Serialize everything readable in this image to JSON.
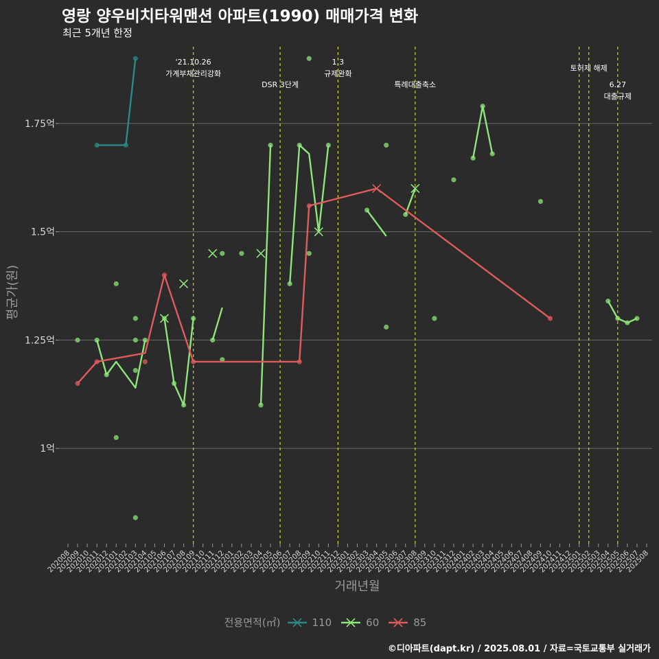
{
  "header": {
    "title": "영랑 양우비치타워맨션 아파트(1990) 매매가격 변화",
    "subtitle": "최근 5개년 한정"
  },
  "footer": {
    "credit": "©디아파트(dapt.kr) / 2025.08.01 / 자료=국토교통부 실거래가"
  },
  "legend": {
    "title": "전용면적(㎡)",
    "items": [
      {
        "label": "110",
        "color": "#2a8a8a"
      },
      {
        "label": "60",
        "color": "#8ee57a"
      },
      {
        "label": "85",
        "color": "#e05c5c"
      }
    ]
  },
  "chart_data": {
    "type": "line",
    "xlabel": "거래년월",
    "ylabel": "평균가(원)",
    "ylim": [
      0.78,
      1.94
    ],
    "yticks": [
      {
        "value": 1.0,
        "label": "1억"
      },
      {
        "value": 1.25,
        "label": "1.25억"
      },
      {
        "value": 1.5,
        "label": "1.5억"
      },
      {
        "value": 1.75,
        "label": "1.75억"
      }
    ],
    "categories": [
      "202008",
      "202009",
      "202010",
      "202011",
      "202012",
      "202101",
      "202102",
      "202103",
      "202104",
      "202105",
      "202106",
      "202107",
      "202108",
      "202109",
      "202110",
      "202111",
      "202112",
      "202201",
      "202202",
      "202203",
      "202204",
      "202205",
      "202206",
      "202207",
      "202208",
      "202209",
      "202210",
      "202211",
      "202212",
      "202301",
      "202302",
      "202303",
      "202304",
      "202305",
      "202306",
      "202307",
      "202308",
      "202309",
      "202310",
      "202311",
      "202312",
      "202401",
      "202402",
      "202403",
      "202404",
      "202405",
      "202406",
      "202407",
      "202408",
      "202409",
      "202410",
      "202411",
      "202412",
      "202501",
      "202502",
      "202503",
      "202504",
      "202505",
      "202506",
      "202507",
      "202508"
    ],
    "x_positions": [
      0,
      1,
      2,
      3,
      4,
      5,
      6,
      7,
      8,
      9,
      10,
      11,
      12,
      13,
      14,
      15,
      16,
      17,
      18,
      19,
      20,
      21,
      22,
      23,
      24,
      25,
      26,
      27,
      28,
      29,
      30,
      31,
      32,
      33,
      34,
      35,
      36,
      37,
      38,
      39,
      40,
      41,
      42,
      43,
      44,
      45,
      46,
      47,
      48,
      49,
      50,
      51,
      52,
      53,
      54,
      55,
      56,
      57,
      58,
      59,
      60
    ],
    "grid": true,
    "legend_position": "bottom",
    "events": [
      {
        "x": 13,
        "label": [
          "'21.10.26",
          "가계부채관리강화"
        ],
        "level": "high"
      },
      {
        "x": 22,
        "label": [
          "DSR 3단계"
        ],
        "level": "low"
      },
      {
        "x": 28,
        "label": [
          "1.3",
          "규제완화"
        ],
        "level": "high"
      },
      {
        "x": 36,
        "label": [
          "특례대출축소"
        ],
        "level": "low"
      },
      {
        "x": 53,
        "label": [],
        "level": "none"
      },
      {
        "x": 54,
        "label": [
          "토허제 해제"
        ],
        "level": "mid"
      },
      {
        "x": 57,
        "label": [
          "6.27",
          "대출규제"
        ],
        "level": "low"
      }
    ],
    "series": [
      {
        "name": "110",
        "color": "#2a8a8a",
        "lines": [
          [
            [
              3,
              1.7
            ],
            [
              6,
              1.7
            ],
            [
              7,
              1.9
            ]
          ]
        ],
        "points": [
          [
            3,
            1.7
          ],
          [
            6,
            1.7
          ],
          [
            7,
            1.9
          ]
        ],
        "cross": []
      },
      {
        "name": "60",
        "color": "#8ee57a",
        "lines": [
          [
            [
              3,
              1.25
            ],
            [
              4,
              1.17
            ],
            [
              5,
              1.2
            ],
            [
              7,
              1.14
            ],
            [
              8,
              1.25
            ]
          ],
          [
            [
              10,
              1.3
            ],
            [
              11,
              1.15
            ],
            [
              12,
              1.1
            ],
            [
              13,
              1.3
            ]
          ],
          [
            [
              15,
              1.25
            ],
            [
              16,
              1.325
            ]
          ],
          [
            [
              20,
              1.1
            ],
            [
              21,
              1.7
            ]
          ],
          [
            [
              23,
              1.38
            ],
            [
              24,
              1.7
            ],
            [
              25,
              1.68
            ],
            [
              26,
              1.5
            ],
            [
              27,
              1.7
            ]
          ],
          [
            [
              31,
              1.55
            ],
            [
              33,
              1.49
            ]
          ],
          [
            [
              35,
              1.54
            ],
            [
              36,
              1.6
            ]
          ],
          [
            [
              42,
              1.67
            ],
            [
              43,
              1.79
            ],
            [
              44,
              1.68
            ]
          ],
          [
            [
              56,
              1.34
            ],
            [
              57,
              1.3
            ],
            [
              58,
              1.29
            ],
            [
              59,
              1.3
            ]
          ]
        ],
        "points": [
          [
            1,
            1.25
          ],
          [
            3,
            1.25
          ],
          [
            4,
            1.17
          ],
          [
            5,
            1.38
          ],
          [
            5,
            1.025
          ],
          [
            7,
            1.3
          ],
          [
            7,
            1.25
          ],
          [
            7,
            1.18
          ],
          [
            7,
            0.84
          ],
          [
            8,
            1.25
          ],
          [
            10,
            1.3
          ],
          [
            11,
            1.15
          ],
          [
            12,
            1.1
          ],
          [
            13,
            1.3
          ],
          [
            15,
            1.25
          ],
          [
            16,
            1.45
          ],
          [
            16,
            1.205
          ],
          [
            18,
            1.45
          ],
          [
            20,
            1.1
          ],
          [
            21,
            1.7
          ],
          [
            23,
            1.38
          ],
          [
            24,
            1.7
          ],
          [
            25,
            1.9
          ],
          [
            25,
            1.45
          ],
          [
            27,
            1.7
          ],
          [
            31,
            1.55
          ],
          [
            33,
            1.7
          ],
          [
            33,
            1.28
          ],
          [
            35,
            1.54
          ],
          [
            38,
            1.3
          ],
          [
            40,
            1.62
          ],
          [
            42,
            1.67
          ],
          [
            43,
            1.79
          ],
          [
            44,
            1.68
          ],
          [
            49,
            1.57
          ],
          [
            56,
            1.34
          ],
          [
            57,
            1.3
          ],
          [
            58,
            1.29
          ],
          [
            59,
            1.3
          ]
        ],
        "cross": [
          [
            10,
            1.3
          ],
          [
            12,
            1.38
          ],
          [
            15,
            1.45
          ],
          [
            20,
            1.45
          ],
          [
            26,
            1.5
          ],
          [
            36,
            1.6
          ]
        ]
      },
      {
        "name": "85",
        "color": "#e05c5c",
        "lines": [
          [
            [
              1,
              1.15
            ],
            [
              3,
              1.2
            ],
            [
              8,
              1.22
            ],
            [
              10,
              1.4
            ],
            [
              13,
              1.2
            ],
            [
              24,
              1.2
            ],
            [
              25,
              1.56
            ],
            [
              32,
              1.6
            ],
            [
              50,
              1.3
            ]
          ]
        ],
        "points": [
          [
            1,
            1.15
          ],
          [
            3,
            1.2
          ],
          [
            8,
            1.2
          ],
          [
            10,
            1.4
          ],
          [
            13,
            1.2
          ],
          [
            24,
            1.2
          ],
          [
            25,
            1.56
          ],
          [
            50,
            1.3
          ]
        ],
        "cross": [
          [
            32,
            1.6
          ]
        ]
      }
    ]
  }
}
